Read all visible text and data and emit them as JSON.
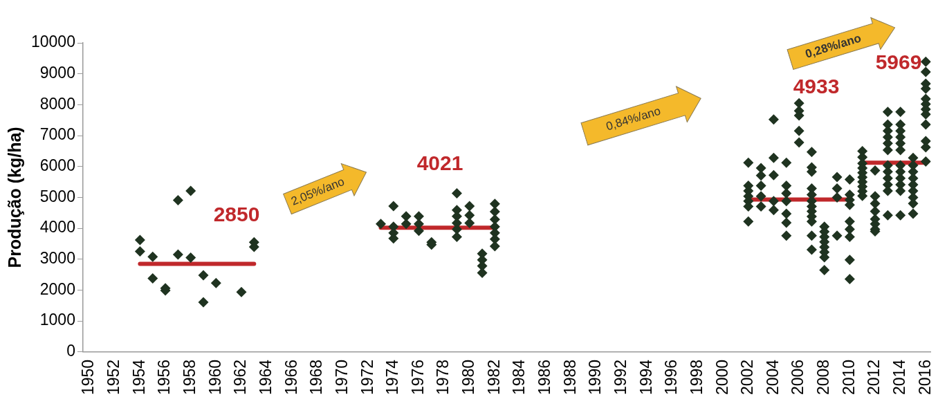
{
  "chart_data": {
    "type": "scatter",
    "ylabel": "Produção (kg/ha)",
    "xlim": [
      1949.5,
      2016.4
    ],
    "xticks": [
      1950,
      1952,
      1954,
      1956,
      1958,
      1960,
      1962,
      1964,
      1966,
      1968,
      1970,
      1972,
      1974,
      1976,
      1978,
      1980,
      1982,
      1984,
      1986,
      1988,
      1990,
      1992,
      1994,
      1996,
      1998,
      2000,
      2002,
      2004,
      2006,
      2008,
      2010,
      2012,
      2014,
      2016
    ],
    "ylim": [
      0,
      10000
    ],
    "yticks": [
      0,
      1000,
      2000,
      3000,
      4000,
      5000,
      6000,
      7000,
      8000,
      9000,
      10000
    ],
    "grid": false,
    "legend": false,
    "marker": "diamond",
    "series": [
      {
        "color": "#1f3320",
        "x": [
          1954,
          1954,
          1955,
          1955,
          1956,
          1956,
          1957,
          1957,
          1958,
          1958,
          1959,
          1959,
          1960,
          1962,
          1963,
          1963,
          1973,
          1974,
          1974,
          1974,
          1974,
          1975,
          1975,
          1976,
          1976,
          1976,
          1977,
          1977,
          1979,
          1979,
          1979,
          1979,
          1979,
          1979,
          1980,
          1980,
          1980,
          1981,
          1981,
          1981,
          1981,
          1982,
          1982,
          1982,
          1982,
          1982,
          1982,
          1982,
          2002,
          2002,
          2002,
          2002,
          2002,
          2002,
          2002,
          2003,
          2003,
          2003,
          2003,
          2003,
          2004,
          2004,
          2004,
          2004,
          2004,
          2005,
          2005,
          2005,
          2005,
          2005,
          2005,
          2005,
          2006,
          2006,
          2006,
          2006,
          2006,
          2007,
          2007,
          2007,
          2007,
          2007,
          2007,
          2007,
          2007,
          2007,
          2007,
          2007,
          2007,
          2008,
          2008,
          2008,
          2008,
          2008,
          2008,
          2008,
          2008,
          2009,
          2009,
          2009,
          2009,
          2010,
          2010,
          2010,
          2010,
          2010,
          2010,
          2010,
          2010,
          2010,
          2011,
          2011,
          2011,
          2011,
          2011,
          2011,
          2011,
          2011,
          2011,
          2011,
          2012,
          2012,
          2012,
          2012,
          2012,
          2012,
          2012,
          2012,
          2013,
          2013,
          2013,
          2013,
          2013,
          2013,
          2013,
          2013,
          2013,
          2013,
          2013,
          2013,
          2014,
          2014,
          2014,
          2014,
          2014,
          2014,
          2014,
          2014,
          2014,
          2014,
          2014,
          2014,
          2015,
          2015,
          2015,
          2015,
          2015,
          2015,
          2015,
          2015,
          2015,
          2016,
          2016,
          2016,
          2016,
          2016,
          2016,
          2016,
          2016,
          2016,
          2016,
          2016,
          2016
        ],
        "values": [
          3620,
          3250,
          3080,
          2380,
          2060,
          1990,
          3150,
          4910,
          3050,
          5210,
          2480,
          1610,
          2230,
          1940,
          3550,
          3400,
          4140,
          4720,
          4050,
          3850,
          3670,
          4390,
          4140,
          4390,
          4140,
          3920,
          3550,
          3470,
          5130,
          4590,
          4390,
          4170,
          3970,
          3720,
          4720,
          4420,
          4170,
          3180,
          2980,
          2780,
          2560,
          4790,
          4540,
          4290,
          4050,
          3850,
          3650,
          3420,
          6120,
          5380,
          5210,
          5040,
          4880,
          4710,
          4220,
          5950,
          5710,
          5380,
          5040,
          4710,
          7520,
          6280,
          5720,
          4880,
          4590,
          6120,
          5380,
          5130,
          4880,
          4470,
          4180,
          3760,
          8050,
          7800,
          7650,
          7150,
          6780,
          6470,
          5970,
          5830,
          5290,
          5090,
          4880,
          4710,
          4550,
          4380,
          4220,
          3760,
          3310,
          4050,
          3890,
          3720,
          3560,
          3390,
          3230,
          3060,
          2650,
          5660,
          5290,
          5000,
          3760,
          5580,
          5090,
          4920,
          4760,
          4220,
          3970,
          3720,
          2980,
          2360,
          6500,
          6300,
          6100,
          5950,
          5800,
          5650,
          5500,
          5350,
          5200,
          5050,
          5870,
          5040,
          4800,
          4550,
          4300,
          4140,
          3970,
          3900,
          7770,
          7360,
          7150,
          6950,
          6750,
          6530,
          6040,
          5830,
          5620,
          5410,
          5210,
          4420,
          7770,
          7360,
          7150,
          6950,
          6750,
          6530,
          6040,
          5830,
          5620,
          5410,
          5210,
          4420,
          6280,
          6040,
          5830,
          5620,
          5410,
          5210,
          5000,
          4800,
          4470,
          9390,
          9060,
          8680,
          8520,
          8190,
          8020,
          7850,
          7690,
          7360,
          6820,
          6620,
          6160
        ]
      },
      {
        "type": "line",
        "marker": "none",
        "color": "#c0282b",
        "x": [
          1954,
          1963
        ],
        "values": [
          2850,
          2850
        ]
      },
      {
        "type": "line",
        "marker": "none",
        "color": "#c0282b",
        "x": [
          1973,
          1982
        ],
        "values": [
          4020,
          4020
        ]
      },
      {
        "type": "line",
        "marker": "none",
        "color": "#c0282b",
        "x": [
          2002,
          2010
        ],
        "values": [
          4930,
          4930
        ]
      },
      {
        "type": "line",
        "marker": "none",
        "color": "#c0282b",
        "x": [
          2011,
          2016
        ],
        "values": [
          6120,
          6120
        ]
      }
    ],
    "annotations": [
      "2850",
      "4021",
      "4933",
      "5969",
      "2,05%/ano",
      "0,84%/ano",
      "0,28%/ano"
    ]
  }
}
